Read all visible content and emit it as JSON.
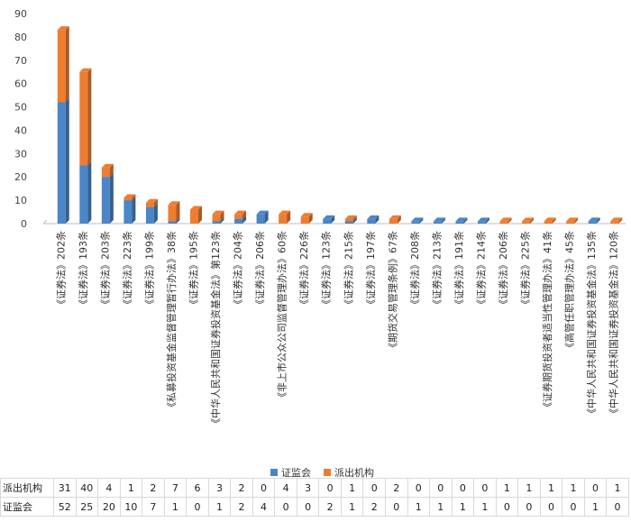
{
  "chart_data": {
    "type": "bar",
    "stacked": true,
    "categories": [
      "《证券法》202条",
      "《证券法》193条",
      "《证券法》203条",
      "《证券法》223条",
      "《证券法》199条",
      "《私募投资基金监督管理暂行办法》38条",
      "《证券法》195条",
      "《中华人民共和国证券投资基金法》第123条",
      "《证券法》204条",
      "《证券法》206条",
      "《非上市公众公司监督管理办法》60条",
      "《证券法》226条",
      "《证券法》123条",
      "《证券法》215条",
      "《证券法》197条",
      "《期货交易管理条例》67条",
      "《证券法》208条",
      "《证券法》213条",
      "《证券法》191条",
      "《证券法》214条",
      "《证券法》206条",
      "《证券法》225条",
      "《证券期货投资者适当性管理办法》41条",
      "《高管任职管理办法》45条",
      "《中华人民共和国证券投资基金法》135条",
      "《中华人民共和国证券投资基金法》120条"
    ],
    "series": [
      {
        "name": "证监会",
        "color": "#4a86c8",
        "values": [
          52,
          25,
          20,
          10,
          7,
          1,
          0,
          1,
          2,
          4,
          0,
          0,
          2,
          1,
          2,
          0,
          1,
          1,
          1,
          1,
          0,
          0,
          0,
          0,
          1,
          0
        ]
      },
      {
        "name": "派出机构",
        "color": "#ee7d31",
        "values": [
          31,
          40,
          4,
          1,
          2,
          7,
          6,
          3,
          2,
          0,
          4,
          3,
          0,
          1,
          0,
          2,
          0,
          0,
          0,
          0,
          1,
          1,
          1,
          1,
          0,
          1
        ]
      }
    ],
    "yticks": [
      0,
      10,
      20,
      30,
      40,
      50,
      60,
      70,
      80,
      90
    ],
    "ylim": [
      0,
      90
    ],
    "grid": false,
    "legend": "bottom",
    "data_table": true
  }
}
